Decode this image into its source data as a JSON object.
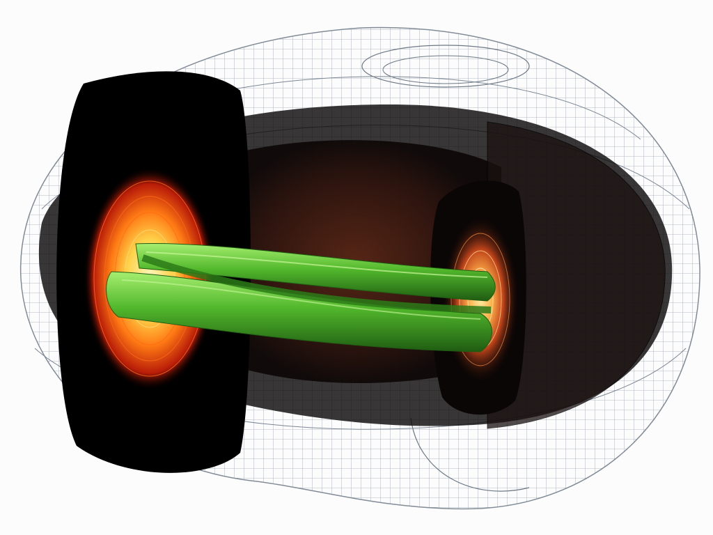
{
  "colors": {
    "background": "#fcfcfd",
    "wireframe": "#7f8c99",
    "wall_shadow": "#111111",
    "plasma_core": "#2a1008",
    "contour_hot": "#ffe680",
    "contour_mid": "#ff8a1a",
    "contour_outer": "#c0200a",
    "flux_tube": "#4cb82a",
    "flux_tube_highlight": "#9be86a",
    "flux_tube_dark": "#1f5c12"
  }
}
